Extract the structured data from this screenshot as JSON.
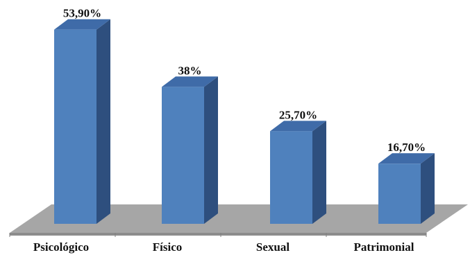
{
  "chart_data": {
    "type": "bar",
    "categories": [
      "Psicológico",
      "Físico",
      "Sexual",
      "Patrimonial"
    ],
    "values": [
      53.9,
      38,
      25.7,
      16.7
    ],
    "value_labels": [
      "53,90%",
      "38%",
      "25,70%",
      "16,70%"
    ],
    "style": "3d",
    "bar_color": "#4F81BD",
    "floor_color": "#A6A6A6",
    "grid": false,
    "legend": "none"
  }
}
